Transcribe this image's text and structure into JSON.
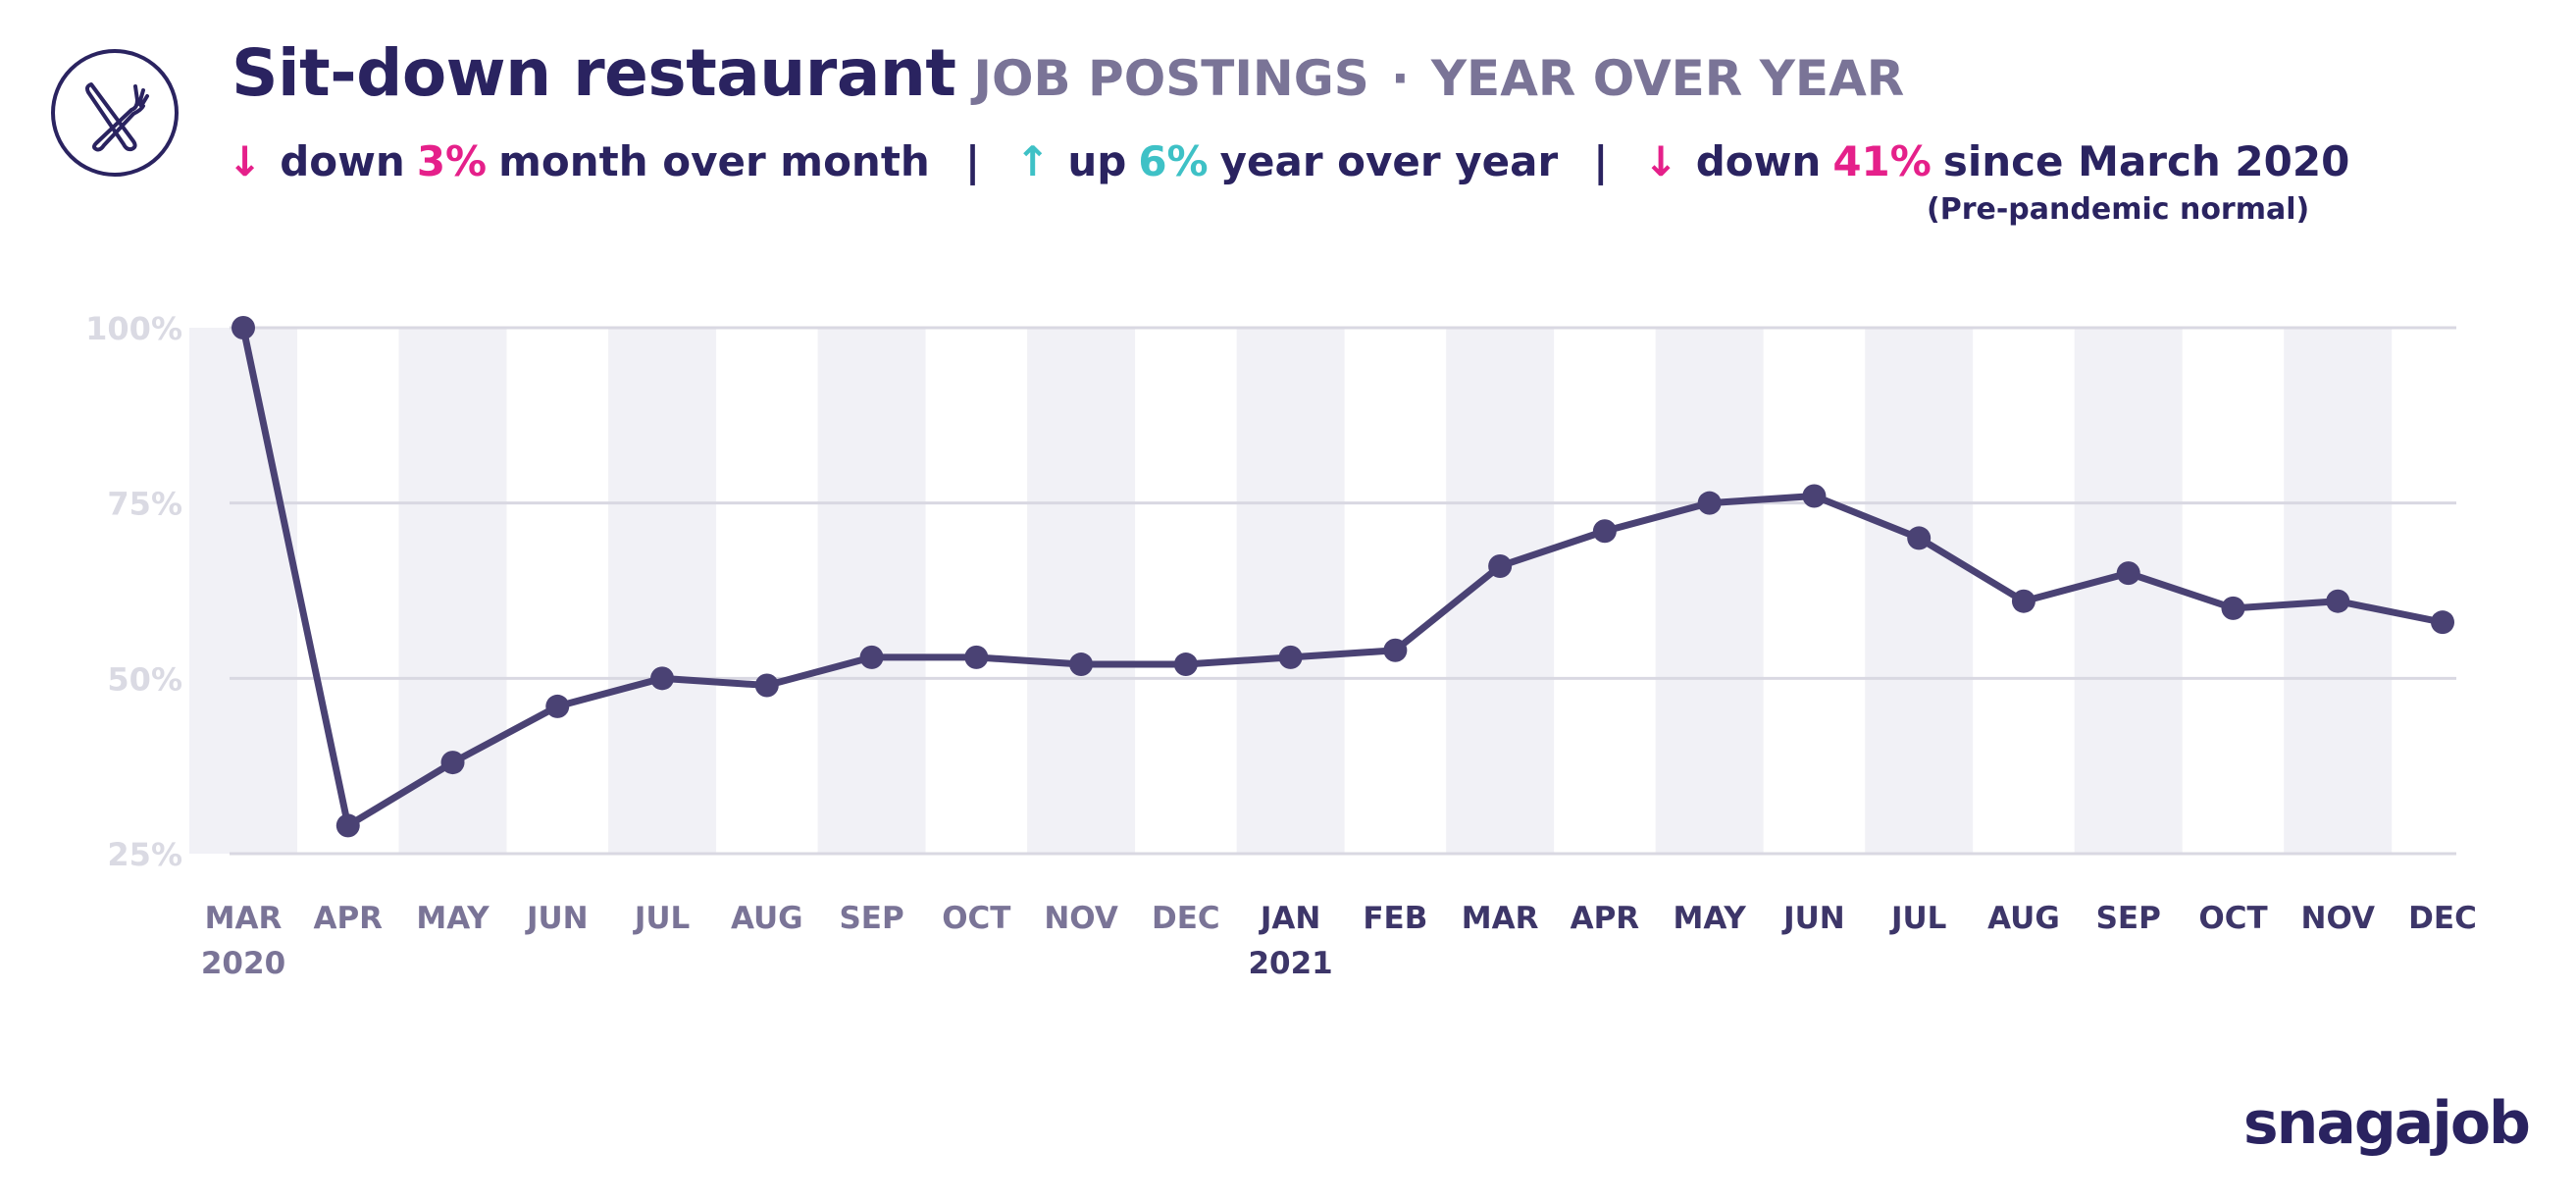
{
  "header": {
    "icon": "fork-knife-icon",
    "title": "Sit-down restaurant",
    "subtitle_a": "JOB POSTINGS",
    "subtitle_sep": "·",
    "subtitle_b": "YEAR OVER YEAR"
  },
  "stats": {
    "mom": {
      "arrow": "↓",
      "word": "down",
      "pct": "3%",
      "text": "month over month"
    },
    "sep1": "|",
    "yoy": {
      "arrow": "↑",
      "word": "up",
      "pct": "6%",
      "text": "year over year"
    },
    "sep2": "|",
    "since": {
      "arrow": "↓",
      "word": "down",
      "pct": "41%",
      "text": "since March 2020"
    },
    "note": "(Pre-pandemic normal)"
  },
  "colors": {
    "line": "#4a4274",
    "grid": "#d9d8e2",
    "band": "#f1f1f6",
    "ytick": "#dadae3",
    "xtick": "#7a7497",
    "xtick_dark": "#3d3669",
    "down": "#e5208a",
    "up": "#3ec1c6"
  },
  "chart_data": {
    "type": "line",
    "x": [
      "MAR",
      "APR",
      "MAY",
      "JUN",
      "JUL",
      "AUG",
      "SEP",
      "OCT",
      "NOV",
      "DEC",
      "JAN",
      "FEB",
      "MAR",
      "APR",
      "MAY",
      "JUN",
      "JUL",
      "AUG",
      "SEP",
      "OCT",
      "NOV",
      "DEC"
    ],
    "year_labels": {
      "0": "2020",
      "10": "2021"
    },
    "series": [
      {
        "values": [
          100,
          29,
          38,
          46,
          50,
          49,
          53,
          53,
          52,
          52,
          53,
          54,
          66,
          71,
          75,
          76,
          70,
          61,
          65,
          60,
          61,
          58
        ]
      }
    ],
    "yticks": [
      100,
      75,
      50,
      25
    ],
    "ytick_labels": [
      "100%",
      "75%",
      "50%",
      "25%"
    ],
    "ylim": [
      25,
      100
    ],
    "grid": true,
    "alternating_bands": true
  },
  "logo": "snagajob"
}
